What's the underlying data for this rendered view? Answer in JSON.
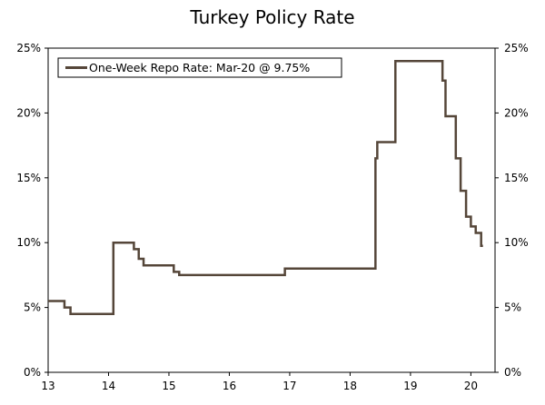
{
  "chart_data": {
    "type": "line",
    "title": "Turkey Policy Rate",
    "xlabel": "",
    "ylabel": "",
    "line_style": "step",
    "xlim": [
      13,
      20.4
    ],
    "ylim": [
      0,
      25
    ],
    "x_ticks": [
      13,
      14,
      15,
      16,
      17,
      18,
      19,
      20
    ],
    "x_tick_labels": [
      "13",
      "14",
      "15",
      "16",
      "17",
      "18",
      "19",
      "20"
    ],
    "y_ticks": [
      0,
      5,
      10,
      15,
      20,
      25
    ],
    "y_tick_labels": [
      "0%",
      "5%",
      "10%",
      "15%",
      "20%",
      "25%"
    ],
    "secondary_y_axis": true,
    "grid": false,
    "legend_position": "top-left",
    "colors": {
      "line": "#554639",
      "axis": "#000000"
    },
    "series": [
      {
        "name": "One-Week Repo Rate: Mar-20 @ 9.75%",
        "x": [
          13.0,
          13.27,
          13.37,
          14.08,
          14.42,
          14.5,
          14.58,
          15.08,
          15.17,
          16.92,
          18.42,
          18.45,
          18.75,
          19.53,
          19.58,
          19.75,
          19.83,
          19.92,
          20.0,
          20.08,
          20.17,
          20.2
        ],
        "values": [
          5.5,
          5.0,
          4.5,
          10.0,
          9.5,
          8.75,
          8.25,
          7.75,
          7.5,
          8.0,
          16.5,
          17.75,
          24.0,
          22.5,
          19.75,
          16.5,
          14.0,
          12.0,
          11.25,
          10.75,
          9.75,
          9.75
        ]
      }
    ]
  }
}
